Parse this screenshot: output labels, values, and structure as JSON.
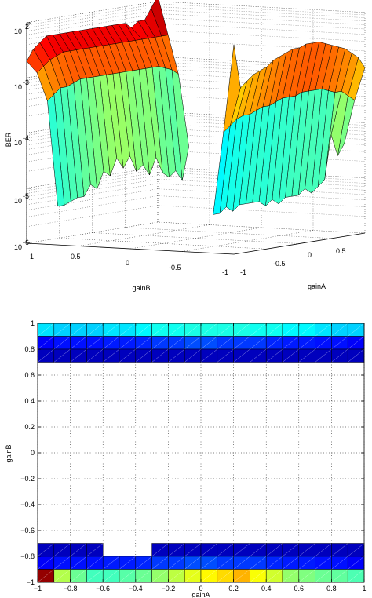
{
  "chart_data": [
    {
      "type": "surface",
      "title": "",
      "zlabel": "BER",
      "xlabel": "gainA",
      "ylabel": "gainB",
      "zscale": "log",
      "zlim": [
        1e-06,
        0.01
      ],
      "x_ticks": [
        "-1",
        "-0.5",
        "0",
        "0.5"
      ],
      "y_ticks": [
        "1",
        "0.5",
        "0",
        "-0.5",
        "-1"
      ],
      "z_ticks": [
        {
          "base": "10",
          "exp": "-6"
        },
        {
          "base": "10",
          "exp": "-5"
        },
        {
          "base": "10",
          "exp": "-4"
        },
        {
          "base": "10",
          "exp": "-3"
        },
        {
          "base": "10",
          "exp": "-2"
        }
      ],
      "gainA": [
        -1,
        -0.9,
        -0.8,
        -0.7,
        -0.6,
        -0.5,
        -0.4,
        -0.3,
        -0.2,
        -0.1,
        0,
        0.1,
        0.2,
        0.3,
        0.4,
        0.5,
        0.6,
        0.7,
        0.8,
        0.9,
        1
      ],
      "gainB_rows": [
        {
          "gainB": 1.0,
          "log10_BER": [
            -2.7,
            -2.5,
            -2.4,
            -2.3,
            -2.3,
            -2.3,
            -2.3,
            -2.3,
            -2.3,
            -2.3,
            -2.3,
            -2.3,
            -2.3,
            -2.3,
            -2.3,
            -2.3,
            -2.4,
            -2.3,
            -2.3,
            -2.1,
            -1.9
          ]
        },
        {
          "gainB": 0.9,
          "log10_BER": [
            -2.9,
            -2.8,
            -2.7,
            -2.65,
            -2.6,
            -2.6,
            -2.6,
            -2.6,
            -2.6,
            -2.6,
            -2.6,
            -2.6,
            -2.6,
            -2.6,
            -2.6,
            -2.6,
            -2.6,
            -2.6,
            -2.6,
            -2.6,
            -2.6
          ]
        },
        {
          "gainB": 0.8,
          "log10_BER": [
            -3.4,
            -3.3,
            -3.2,
            -3.2,
            -3.15,
            -3.1,
            -3.1,
            -3.1,
            -3.1,
            -3.1,
            -3.1,
            -3.1,
            -3.1,
            -3.1,
            -3.1,
            -3.1,
            -3.1,
            -3.1,
            -3.15,
            -3.2,
            -3.3
          ]
        },
        {
          "gainB": 0.7,
          "log10_BER": [
            -5.3,
            -5.3,
            -5.25,
            -5.2,
            -5.2,
            -5.0,
            -5.1,
            -4.8,
            -4.9,
            -4.6,
            -4.8,
            -4.6,
            -4.9,
            -4.8,
            -5.0,
            -4.7,
            -5.0,
            -5.1,
            -5.0,
            -5.2,
            -4.6
          ]
        },
        {
          "gainB": -0.8,
          "log10_BER": [
            -5.3,
            -5.3,
            -5.2,
            -5.3,
            -5.2,
            -5.2,
            -5.2,
            -5.2,
            -5.3,
            -5.2,
            -5.3,
            -5.2,
            -5.2,
            -5.2,
            -5.1,
            -5.2,
            -5.1,
            -5.0,
            -4.2,
            -4.6,
            -4.4
          ]
        },
        {
          "gainB": -0.9,
          "log10_BER": [
            -3.8,
            -3.7,
            -3.6,
            -3.55,
            -3.55,
            -3.5,
            -3.45,
            -3.45,
            -3.4,
            -3.35,
            -3.35,
            -3.35,
            -3.3,
            -3.3,
            -3.3,
            -3.3,
            -3.35,
            -3.4,
            -3.4,
            -3.5,
            -3.6
          ]
        },
        {
          "gainB": -1.0,
          "log10_BER": [
            -2.2,
            -3.0,
            -2.9,
            -2.8,
            -2.75,
            -2.7,
            -2.6,
            -2.55,
            -2.5,
            -2.45,
            -2.45,
            -2.4,
            -2.4,
            -2.4,
            -2.45,
            -2.5,
            -2.55,
            -2.6,
            -2.7,
            -2.8,
            -3.0
          ]
        }
      ]
    },
    {
      "type": "heatmap",
      "title": "",
      "xlabel": "gainA",
      "ylabel": "gainB",
      "xlim": [
        -1,
        1
      ],
      "ylim": [
        -1,
        1
      ],
      "x_ticks": [
        "−1",
        "−0.8",
        "−0.6",
        "−0.4",
        "−0.2",
        "0",
        "0.2",
        "0.4",
        "0.6",
        "0.8",
        "1"
      ],
      "y_ticks": [
        "−1",
        "−0.8",
        "−0.6",
        "−0.4",
        "−0.2",
        "0",
        "0.2",
        "0.4",
        "0.6",
        "0.8",
        "1"
      ],
      "grid": true,
      "cell_size": 0.1,
      "rows": [
        {
          "y0": 0.9,
          "levels": [
            0.35,
            0.33,
            0.33,
            0.33,
            0.35,
            0.35,
            0.37,
            0.39,
            0.39,
            0.4,
            0.4,
            0.4,
            0.4,
            0.39,
            0.39,
            0.37,
            0.37,
            0.35,
            0.33,
            0.33
          ]
        },
        {
          "y0": 0.8,
          "levels": [
            0.12,
            0.14,
            0.14,
            0.14,
            0.15,
            0.15,
            0.16,
            0.18,
            0.18,
            0.2,
            0.2,
            0.18,
            0.18,
            0.18,
            0.16,
            0.15,
            0.15,
            0.14,
            0.14,
            0.12
          ]
        },
        {
          "y0": 0.7,
          "levels": [
            0.06,
            0.06,
            0.06,
            0.06,
            0.06,
            0.06,
            0.06,
            0.06,
            0.06,
            0.06,
            0.06,
            0.06,
            0.06,
            0.06,
            0.06,
            0.06,
            0.06,
            0.06,
            0.06,
            0.06
          ]
        },
        {
          "y0": -0.8,
          "levels": [
            0.06,
            0.06,
            0.06,
            0.06,
            null,
            null,
            null,
            0.06,
            0.06,
            0.06,
            0.06,
            0.06,
            0.06,
            0.06,
            0.06,
            0.06,
            0.06,
            0.06,
            0.06,
            0.06
          ]
        },
        {
          "y0": -0.9,
          "levels": [
            0.12,
            0.14,
            0.14,
            0.14,
            0.15,
            0.15,
            0.16,
            0.18,
            0.18,
            0.2,
            0.2,
            0.18,
            0.18,
            0.18,
            0.16,
            0.15,
            0.15,
            0.14,
            0.14,
            0.12
          ]
        },
        {
          "y0": -1.0,
          "levels": [
            0.98,
            0.55,
            0.48,
            0.44,
            0.44,
            0.46,
            0.48,
            0.52,
            0.56,
            0.6,
            0.63,
            0.66,
            0.7,
            0.62,
            0.58,
            0.52,
            0.5,
            0.48,
            0.47,
            0.45
          ]
        }
      ]
    }
  ]
}
